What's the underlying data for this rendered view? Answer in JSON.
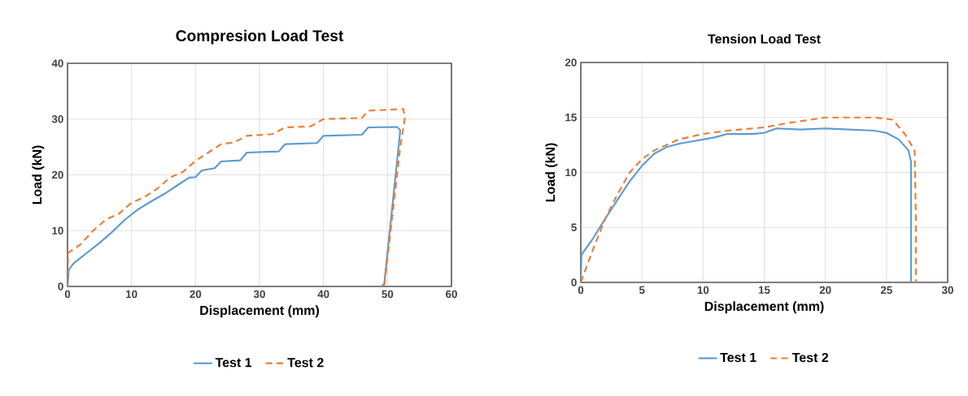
{
  "chart_data": [
    {
      "type": "line",
      "title": "Compresion Load Test",
      "xlabel": "Displacement (mm)",
      "ylabel": "Load (kN)",
      "xlim": [
        0,
        60
      ],
      "ylim": [
        0,
        40
      ],
      "xticks": [
        0,
        10,
        20,
        30,
        40,
        50,
        60
      ],
      "yticks": [
        0,
        10,
        20,
        30,
        40
      ],
      "grid": true,
      "legend": "bottom",
      "series": [
        {
          "name": "Test 1",
          "color": "#5b9bd5",
          "line_style": "solid",
          "x": [
            0,
            0.2,
            1,
            3,
            5,
            7,
            9,
            11,
            13,
            15,
            17,
            19,
            20,
            21,
            23,
            24,
            27,
            28,
            33,
            34,
            39,
            40,
            46,
            47,
            51.5,
            52,
            49.5,
            49
          ],
          "values": [
            0,
            3,
            4.2,
            6,
            7.8,
            9.8,
            12,
            13.8,
            15.2,
            16.5,
            18,
            19.5,
            19.6,
            20.8,
            21.2,
            22.4,
            22.6,
            24,
            24.2,
            25.5,
            25.7,
            27,
            27.2,
            28.5,
            28.6,
            28,
            0.5,
            0
          ]
        },
        {
          "name": "Test 2",
          "color": "#ed7d31",
          "line_style": "dashed",
          "x": [
            0,
            0.1,
            2,
            4,
            6,
            8,
            10,
            12,
            14,
            16,
            18,
            20,
            22,
            24,
            26,
            28,
            32,
            34,
            38,
            40,
            46,
            47,
            52.5,
            52.7,
            52,
            50,
            49.7,
            49.5
          ],
          "values": [
            0,
            6,
            7.5,
            10,
            12,
            13,
            15,
            16,
            17.5,
            19.5,
            20.5,
            22.5,
            24,
            25.5,
            25.8,
            27,
            27.3,
            28.5,
            28.7,
            30,
            30.2,
            31.5,
            31.8,
            30,
            25,
            5,
            2,
            0
          ]
        }
      ]
    },
    {
      "type": "line",
      "title": "Tension Load Test",
      "xlabel": "Displacement (mm)",
      "ylabel": "Load (kN)",
      "xlim": [
        0,
        30
      ],
      "ylim": [
        0,
        20
      ],
      "xticks": [
        0,
        5,
        10,
        15,
        20,
        25,
        30
      ],
      "yticks": [
        0,
        5,
        10,
        15,
        20
      ],
      "grid": true,
      "legend": "bottom",
      "series": [
        {
          "name": "Test 1",
          "color": "#5b9bd5",
          "line_style": "solid",
          "x": [
            0,
            0.05,
            1,
            2,
            3,
            4,
            5,
            6,
            7,
            8,
            9,
            10,
            11,
            12,
            14,
            15,
            16,
            18,
            20,
            22,
            24,
            25,
            26,
            26.8,
            27,
            27
          ],
          "values": [
            0,
            2.5,
            4,
            5.8,
            7.5,
            9.2,
            10.6,
            11.7,
            12.3,
            12.6,
            12.8,
            13,
            13.2,
            13.5,
            13.5,
            13.6,
            14,
            13.9,
            14,
            13.9,
            13.8,
            13.6,
            13,
            12,
            11,
            0
          ]
        },
        {
          "name": "Test 2",
          "color": "#ed7d31",
          "line_style": "dashed",
          "x": [
            0,
            1,
            2,
            3,
            4,
            5,
            6,
            7,
            8,
            10,
            12,
            15,
            17,
            20,
            24,
            25.5,
            26.5,
            27.3,
            27.4,
            27.4
          ],
          "values": [
            0,
            3,
            5.8,
            8,
            10,
            11.2,
            12,
            12.5,
            13,
            13.5,
            13.8,
            14.1,
            14.5,
            15,
            15,
            14.8,
            13.5,
            12,
            6,
            0
          ]
        }
      ]
    }
  ]
}
